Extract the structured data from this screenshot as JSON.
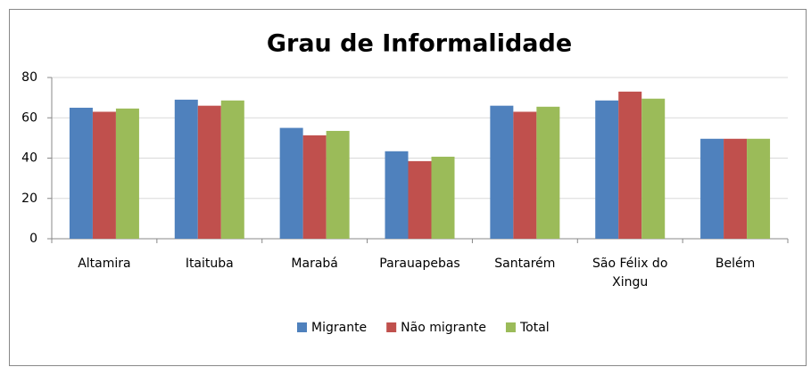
{
  "chart_data": {
    "type": "bar",
    "title": "Grau de Informalidade",
    "categories": [
      "Altamira",
      "Itaituba",
      "Marabá",
      "Parauapebas",
      "Santarém",
      "São Félix do Xingu",
      "Belém"
    ],
    "series": [
      {
        "name": "Migrante",
        "color": "#4f81bd",
        "values": [
          65,
          69,
          55,
          43.4,
          66,
          68.6,
          49.6
        ]
      },
      {
        "name": "Não migrante",
        "color": "#c0504d",
        "values": [
          63,
          66,
          51.3,
          38.5,
          63,
          73,
          49.6
        ]
      },
      {
        "name": "Total",
        "color": "#9bbb59",
        "values": [
          64.6,
          68.6,
          53.5,
          40.7,
          65.5,
          69.5,
          49.6
        ]
      }
    ],
    "ylim": [
      0,
      80
    ],
    "yticks": [
      0,
      20,
      40,
      60,
      80
    ],
    "grid": true
  }
}
